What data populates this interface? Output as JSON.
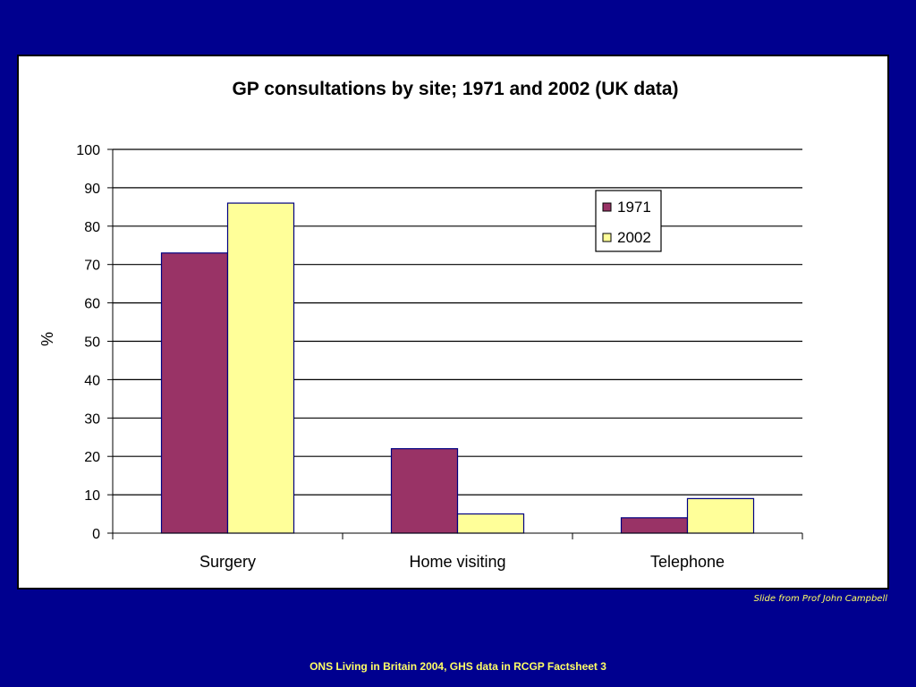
{
  "colors": {
    "background": "#00008f",
    "panel": "#ffffff",
    "series_1971": "#993366",
    "series_2002": "#ffff99",
    "footer_text": "#ffff66"
  },
  "chart_data": {
    "type": "bar",
    "title": "GP consultations by site; 1971 and 2002 (UK data)",
    "xlabel": "",
    "ylabel": "%",
    "ylim": [
      0,
      100
    ],
    "ytick_step": 10,
    "yticks": [
      "0",
      "10",
      "20",
      "30",
      "40",
      "50",
      "60",
      "70",
      "80",
      "90",
      "100"
    ],
    "grid": true,
    "legend_position": "top-right",
    "categories": [
      "Surgery",
      "Home visiting",
      "Telephone"
    ],
    "series": [
      {
        "name": "1971",
        "values": [
          73,
          22,
          4
        ]
      },
      {
        "name": "2002",
        "values": [
          86,
          5,
          9
        ]
      }
    ]
  },
  "footer": {
    "credit": "Slide from Prof John Campbell",
    "source": "ONS Living in Britain 2004, GHS data in RCGP Factsheet 3"
  }
}
